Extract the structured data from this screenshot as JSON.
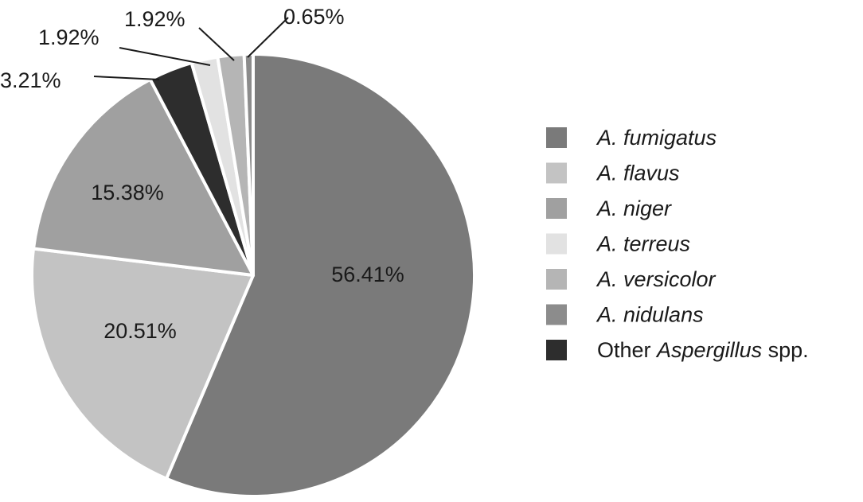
{
  "chart_data": {
    "type": "pie",
    "title": "",
    "slices": [
      {
        "label": "A. fumigatus",
        "value": 56.41,
        "display": "56.41%",
        "color": "#7a7a7a"
      },
      {
        "label": "A. flavus",
        "value": 20.51,
        "display": "20.51%",
        "color": "#c3c3c3"
      },
      {
        "label": "A. niger",
        "value": 15.38,
        "display": "15.38%",
        "color": "#a0a0a0"
      },
      {
        "label": "Other Aspergillus spp.",
        "value": 3.21,
        "display": "3.21%",
        "color": "#2d2d2d"
      },
      {
        "label": "A. terreus",
        "value": 1.92,
        "display": "1.92%",
        "color": "#e2e2e2"
      },
      {
        "label": "A. versicolor",
        "value": 1.92,
        "display": "1.92%",
        "color": "#b5b5b5"
      },
      {
        "label": "A. nidulans",
        "value": 0.65,
        "display": "0.65%",
        "color": "#8c8c8c"
      }
    ],
    "legend": {
      "placement": "right",
      "entries": [
        {
          "parts": [
            {
              "text": "A. fumigatus",
              "italic": true
            }
          ],
          "color": "#7a7a7a"
        },
        {
          "parts": [
            {
              "text": "A. flavus",
              "italic": true
            }
          ],
          "color": "#c3c3c3"
        },
        {
          "parts": [
            {
              "text": "A. niger",
              "italic": true
            }
          ],
          "color": "#a0a0a0"
        },
        {
          "parts": [
            {
              "text": "A. terreus",
              "italic": true
            }
          ],
          "color": "#e2e2e2"
        },
        {
          "parts": [
            {
              "text": "A. versicolor",
              "italic": true
            }
          ],
          "color": "#b5b5b5"
        },
        {
          "parts": [
            {
              "text": "A. nidulans",
              "italic": true
            }
          ],
          "color": "#8c8c8c"
        },
        {
          "parts": [
            {
              "text": "Other ",
              "italic": false
            },
            {
              "text": "Aspergillus",
              "italic": true
            },
            {
              "text": " spp.",
              "italic": false
            }
          ],
          "color": "#2d2d2d"
        }
      ]
    }
  }
}
